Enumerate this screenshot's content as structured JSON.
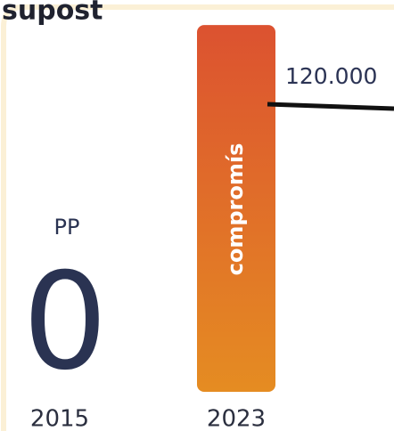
{
  "chart_data": {
    "type": "bar",
    "title": "supost",
    "categories": [
      "2015",
      "2023"
    ],
    "bar_labels": [
      "PP",
      "compromís"
    ],
    "values": [
      0,
      153000
    ],
    "value_labels": [
      "0",
      null
    ],
    "colors": [
      "#2a3352",
      [
        "#dc5230",
        "#e58c22"
      ]
    ],
    "ylim": [
      0,
      160000
    ],
    "reference_line": {
      "value": 120000,
      "label": "120.000"
    }
  }
}
